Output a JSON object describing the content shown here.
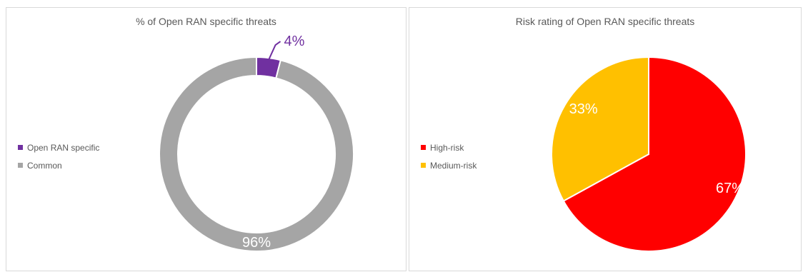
{
  "chart_data": [
    {
      "type": "pie",
      "title": "% of Open RAN specific threats",
      "donut": true,
      "legend_position": "left",
      "slices": [
        {
          "name": "Open RAN specific",
          "value": 4,
          "label": "4%",
          "color": "#7030a0"
        },
        {
          "name": "Common",
          "value": 96,
          "label": "96%",
          "color": "#a5a5a5"
        }
      ]
    },
    {
      "type": "pie",
      "title": "Risk rating of Open RAN specific threats",
      "donut": false,
      "legend_position": "left",
      "slices": [
        {
          "name": "High-risk",
          "value": 67,
          "label": "67%",
          "color": "#ff0000"
        },
        {
          "name": "Medium-risk",
          "value": 33,
          "label": "33%",
          "color": "#ffc000"
        }
      ]
    }
  ]
}
